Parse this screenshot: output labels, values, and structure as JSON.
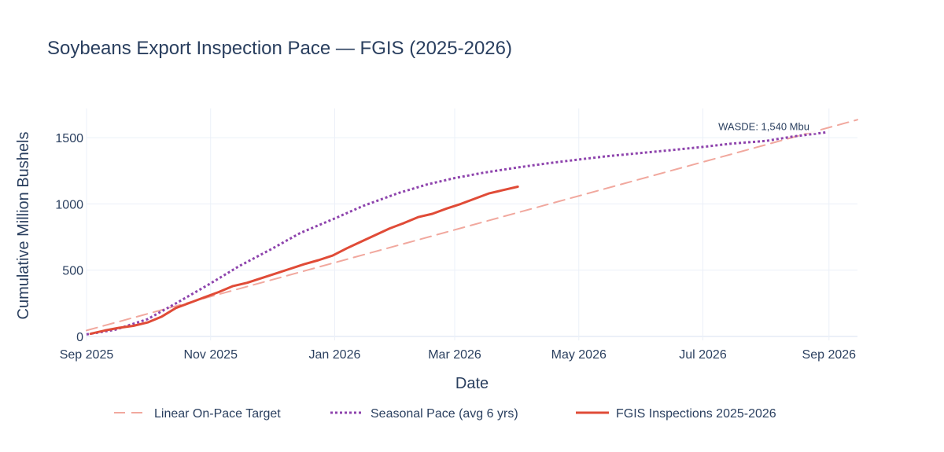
{
  "chart_data": {
    "type": "line",
    "title": "Soybeans Export Inspection Pace — FGIS (2025-2026)",
    "xlabel": "Date",
    "ylabel": "Cumulative Million Bushels",
    "x_type": "date",
    "xlim": [
      "2025-09-01",
      "2026-09-15"
    ],
    "ylim": [
      -30,
      1720
    ],
    "x_ticks": [
      {
        "date": "2025-09-01",
        "label": "Sep 2025"
      },
      {
        "date": "2025-11-01",
        "label": "Nov 2025"
      },
      {
        "date": "2026-01-01",
        "label": "Jan 2026"
      },
      {
        "date": "2026-03-01",
        "label": "Mar 2026"
      },
      {
        "date": "2026-05-01",
        "label": "May 2026"
      },
      {
        "date": "2026-07-01",
        "label": "Jul 2026"
      },
      {
        "date": "2026-09-01",
        "label": "Sep 2026"
      }
    ],
    "y_ticks": [
      0,
      500,
      1000,
      1500
    ],
    "grid": true,
    "legend_position": "bottom",
    "series": [
      {
        "name": "Linear On-Pace Target",
        "color": "#f1a89e",
        "style": "dash",
        "points": [
          {
            "x": "2025-09-01",
            "y": 45
          },
          {
            "x": "2026-09-15",
            "y": 1635
          }
        ]
      },
      {
        "name": "Seasonal Pace (avg 6 yrs)",
        "color": "#8e44ad",
        "style": "dot",
        "points": [
          {
            "x": "2025-09-01",
            "y": 15
          },
          {
            "x": "2025-09-15",
            "y": 50
          },
          {
            "x": "2025-10-01",
            "y": 130
          },
          {
            "x": "2025-10-15",
            "y": 250
          },
          {
            "x": "2025-11-01",
            "y": 400
          },
          {
            "x": "2025-11-15",
            "y": 530
          },
          {
            "x": "2025-12-01",
            "y": 660
          },
          {
            "x": "2025-12-15",
            "y": 780
          },
          {
            "x": "2026-01-01",
            "y": 890
          },
          {
            "x": "2026-01-15",
            "y": 985
          },
          {
            "x": "2026-02-01",
            "y": 1080
          },
          {
            "x": "2026-02-15",
            "y": 1145
          },
          {
            "x": "2026-03-01",
            "y": 1195
          },
          {
            "x": "2026-03-15",
            "y": 1235
          },
          {
            "x": "2026-04-01",
            "y": 1275
          },
          {
            "x": "2026-04-15",
            "y": 1305
          },
          {
            "x": "2026-05-01",
            "y": 1335
          },
          {
            "x": "2026-05-15",
            "y": 1360
          },
          {
            "x": "2026-06-01",
            "y": 1385
          },
          {
            "x": "2026-06-15",
            "y": 1405
          },
          {
            "x": "2026-07-01",
            "y": 1430
          },
          {
            "x": "2026-07-15",
            "y": 1455
          },
          {
            "x": "2026-08-01",
            "y": 1475
          },
          {
            "x": "2026-08-15",
            "y": 1510
          },
          {
            "x": "2026-08-31",
            "y": 1540
          }
        ]
      },
      {
        "name": "FGIS Inspections 2025-2026",
        "color": "#e04b37",
        "style": "solid",
        "points": [
          {
            "x": "2025-09-03",
            "y": 20
          },
          {
            "x": "2025-09-10",
            "y": 45
          },
          {
            "x": "2025-09-17",
            "y": 65
          },
          {
            "x": "2025-09-24",
            "y": 80
          },
          {
            "x": "2025-10-01",
            "y": 105
          },
          {
            "x": "2025-10-08",
            "y": 150
          },
          {
            "x": "2025-10-15",
            "y": 215
          },
          {
            "x": "2025-10-22",
            "y": 255
          },
          {
            "x": "2025-10-29",
            "y": 295
          },
          {
            "x": "2025-11-05",
            "y": 335
          },
          {
            "x": "2025-11-12",
            "y": 380
          },
          {
            "x": "2025-11-19",
            "y": 405
          },
          {
            "x": "2025-11-26",
            "y": 440
          },
          {
            "x": "2025-12-03",
            "y": 475
          },
          {
            "x": "2025-12-10",
            "y": 510
          },
          {
            "x": "2025-12-17",
            "y": 545
          },
          {
            "x": "2025-12-24",
            "y": 575
          },
          {
            "x": "2025-12-31",
            "y": 610
          },
          {
            "x": "2026-01-07",
            "y": 665
          },
          {
            "x": "2026-01-14",
            "y": 715
          },
          {
            "x": "2026-01-21",
            "y": 765
          },
          {
            "x": "2026-01-28",
            "y": 815
          },
          {
            "x": "2026-02-04",
            "y": 855
          },
          {
            "x": "2026-02-11",
            "y": 900
          },
          {
            "x": "2026-02-18",
            "y": 925
          },
          {
            "x": "2026-02-25",
            "y": 965
          },
          {
            "x": "2026-03-04",
            "y": 1000
          },
          {
            "x": "2026-03-11",
            "y": 1040
          },
          {
            "x": "2026-03-18",
            "y": 1080
          },
          {
            "x": "2026-03-25",
            "y": 1105
          },
          {
            "x": "2026-04-01",
            "y": 1130
          }
        ]
      }
    ],
    "annotations": [
      {
        "text": "WASDE: 1,540 Mbu",
        "x": "2026-07-31",
        "y": 1540
      }
    ]
  }
}
